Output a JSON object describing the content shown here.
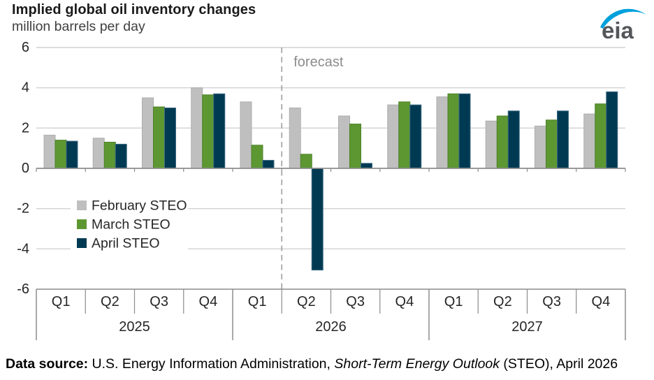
{
  "header": {
    "title": "Implied global oil inventory changes",
    "subtitle": "million barrels per day"
  },
  "logo": {
    "text": "eia"
  },
  "chart_data": {
    "type": "bar",
    "title": "Implied global oil inventory changes",
    "ylabel": "million barrels per day",
    "ylim": [
      -6,
      6
    ],
    "yticks": [
      6,
      4,
      2,
      0,
      -2,
      -4,
      -6
    ],
    "grid": true,
    "legend_position": "inside-left",
    "categories": [
      "Q1 2025",
      "Q2 2025",
      "Q3 2025",
      "Q4 2025",
      "Q1 2026",
      "Q2 2026",
      "Q3 2026",
      "Q4 2026",
      "Q1 2027",
      "Q2 2027",
      "Q3 2027",
      "Q4 2027"
    ],
    "years": [
      {
        "label": "2025",
        "quarters": [
          "Q1",
          "Q2",
          "Q3",
          "Q4"
        ]
      },
      {
        "label": "2026",
        "quarters": [
          "Q1",
          "Q2",
          "Q3",
          "Q4"
        ]
      },
      {
        "label": "2027",
        "quarters": [
          "Q1",
          "Q2",
          "Q3",
          "Q4"
        ]
      }
    ],
    "series": [
      {
        "name": "February STEO",
        "color": "#bfbfbf",
        "border": "#aeaeae",
        "values": [
          1.65,
          1.5,
          3.5,
          4.0,
          3.3,
          3.0,
          2.6,
          3.15,
          3.55,
          2.35,
          2.1,
          2.7
        ]
      },
      {
        "name": "March STEO",
        "color": "#5d9732",
        "border": "#4c8127",
        "values": [
          1.4,
          1.3,
          3.05,
          3.65,
          1.15,
          0.7,
          2.2,
          3.3,
          3.7,
          2.6,
          2.4,
          3.2
        ]
      },
      {
        "name": "April STEO",
        "color": "#003a52",
        "border": "#3c6a85",
        "values": [
          1.35,
          1.2,
          3.0,
          3.7,
          0.4,
          -5.05,
          0.25,
          3.15,
          3.7,
          2.85,
          2.85,
          3.8
        ]
      }
    ],
    "forecast": {
      "label": "forecast",
      "starts_at_category": "Q2 2026"
    },
    "colors": {
      "grid": "#d2d2d2",
      "axis": "#8c8c8c",
      "text": "#262626",
      "forecast_text": "#8c8c8c",
      "logo_swoosh": "#00a0dc",
      "logo_text": "#55565a"
    }
  },
  "footer": {
    "label": "Data source:",
    "text1": " U.S. Energy Information Administration, ",
    "italic": "Short-Term Energy Outlook",
    "text2": " (STEO), April 2026"
  }
}
